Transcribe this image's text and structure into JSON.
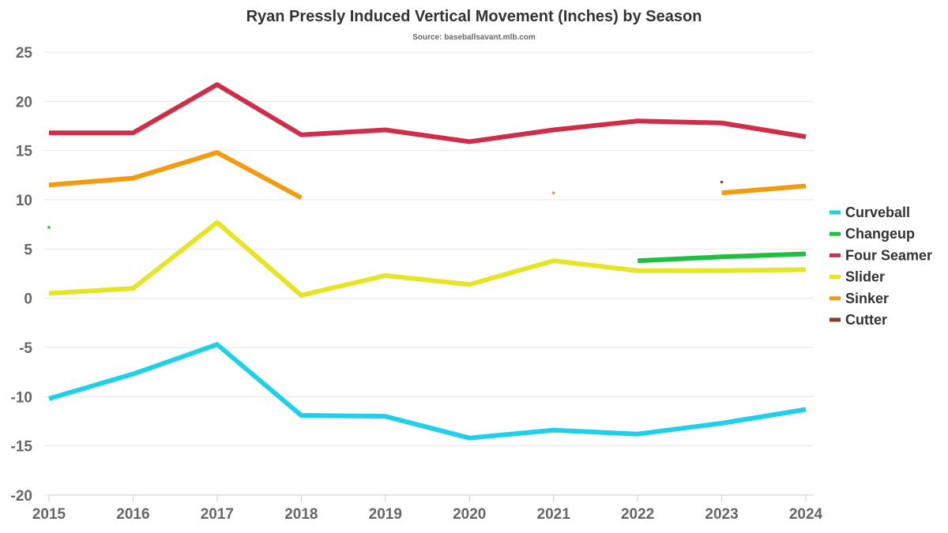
{
  "chart_data": {
    "type": "line",
    "title": "Ryan Pressly Induced Vertical Movement (Inches) by Season",
    "subtitle": "Source: baseballsavant.mlb.com",
    "xlabel": "",
    "ylabel": "",
    "x": [
      "2015",
      "2016",
      "2017",
      "2018",
      "2019",
      "2020",
      "2021",
      "2022",
      "2023",
      "2024"
    ],
    "ylim": [
      -20,
      25
    ],
    "yticks": [
      25,
      20,
      15,
      10,
      5,
      0,
      -5,
      -10,
      -15,
      -20
    ],
    "grid": true,
    "legend_position": "right",
    "series": [
      {
        "name": "Curveball",
        "color": "#1fd0e8",
        "values": [
          -10.2,
          -7.7,
          -4.7,
          -11.9,
          -12.0,
          -14.2,
          -13.4,
          -13.8,
          -12.7,
          -11.3
        ]
      },
      {
        "name": "Changeup",
        "color": "#21bf41",
        "values": [
          7.2,
          null,
          null,
          null,
          null,
          null,
          null,
          3.8,
          4.2,
          4.5
        ]
      },
      {
        "name": "Four Seamer",
        "color": "#cf2e48",
        "values": [
          16.8,
          16.8,
          21.7,
          16.6,
          17.1,
          15.9,
          17.1,
          18.0,
          17.8,
          16.4
        ]
      },
      {
        "name": "Slider",
        "color": "#e6e424",
        "values": [
          0.5,
          1.0,
          7.7,
          0.3,
          2.3,
          1.4,
          3.8,
          2.8,
          2.8,
          2.9
        ]
      },
      {
        "name": "Sinker",
        "color": "#f29b11",
        "values": [
          11.5,
          12.2,
          14.8,
          10.2,
          null,
          null,
          10.7,
          null,
          10.7,
          11.4
        ]
      },
      {
        "name": "Cutter",
        "color": "#8b3a1f",
        "values": [
          null,
          null,
          null,
          null,
          null,
          null,
          null,
          null,
          11.8,
          null
        ]
      }
    ]
  }
}
